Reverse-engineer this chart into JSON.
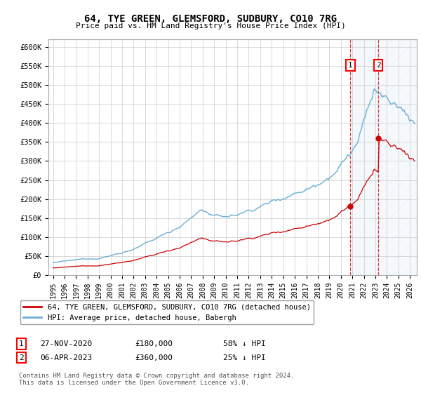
{
  "title": "64, TYE GREEN, GLEMSFORD, SUDBURY, CO10 7RG",
  "subtitle": "Price paid vs. HM Land Registry's House Price Index (HPI)",
  "legend_line1": "64, TYE GREEN, GLEMSFORD, SUDBURY, CO10 7RG (detached house)",
  "legend_line2": "HPI: Average price, detached house, Babergh",
  "footnote": "Contains HM Land Registry data © Crown copyright and database right 2024.\nThis data is licensed under the Open Government Licence v3.0.",
  "sale1_date": "27-NOV-2020",
  "sale1_price": "£180,000",
  "sale1_note": "58% ↓ HPI",
  "sale2_date": "06-APR-2023",
  "sale2_price": "£360,000",
  "sale2_note": "25% ↓ HPI",
  "hpi_color": "#6baed6",
  "sale_color": "#cc0000",
  "ylim": [
    0,
    620000
  ],
  "ytick_vals": [
    0,
    50000,
    100000,
    150000,
    200000,
    250000,
    300000,
    350000,
    400000,
    450000,
    500000,
    550000,
    600000
  ],
  "ytick_labels": [
    "£0",
    "£50K",
    "£100K",
    "£150K",
    "£200K",
    "£250K",
    "£300K",
    "£350K",
    "£400K",
    "£450K",
    "£500K",
    "£550K",
    "£600K"
  ],
  "xstart": 1995,
  "xend": 2026,
  "background_color": "#ffffff",
  "grid_color": "#cccccc",
  "sale1_year": 2020,
  "sale1_month": 11,
  "sale1_price_val": 180000,
  "sale2_year": 2023,
  "sale2_month": 4,
  "sale2_price_val": 360000
}
